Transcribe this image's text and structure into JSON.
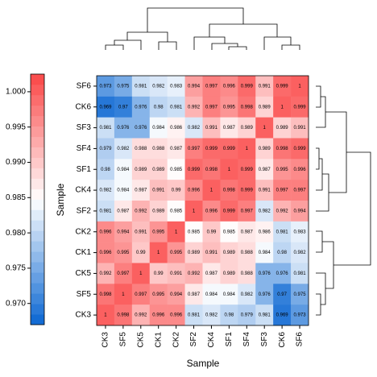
{
  "chart_data": {
    "type": "heatmap",
    "x_label": "Sample",
    "y_label": "Sample",
    "columns": [
      "CK3",
      "SF5",
      "CK5",
      "CK1",
      "CK2",
      "SF2",
      "CK4",
      "SF1",
      "SF4",
      "SF3",
      "CK6",
      "SF6"
    ],
    "rows": [
      "SF6",
      "CK6",
      "SF3",
      "SF4",
      "SF1",
      "CK4",
      "SF2",
      "CK2",
      "CK1",
      "CK5",
      "SF5",
      "CK3"
    ],
    "values": [
      [
        0.973,
        0.975,
        0.981,
        0.982,
        0.983,
        0.994,
        0.997,
        0.996,
        0.999,
        0.991,
        0.999,
        1
      ],
      [
        0.969,
        0.97,
        0.976,
        0.98,
        0.981,
        0.992,
        0.997,
        0.995,
        0.998,
        0.989,
        1,
        0.999
      ],
      [
        0.981,
        0.976,
        0.976,
        0.984,
        0.986,
        0.982,
        0.991,
        0.987,
        0.989,
        1,
        0.989,
        0.991
      ],
      [
        0.979,
        0.982,
        0.988,
        0.988,
        0.987,
        0.997,
        0.999,
        0.999,
        1,
        0.989,
        0.998,
        0.999
      ],
      [
        0.98,
        0.984,
        0.989,
        0.989,
        0.985,
        0.999,
        0.998,
        1,
        0.999,
        0.987,
        0.995,
        0.996
      ],
      [
        0.982,
        0.984,
        0.987,
        0.991,
        0.99,
        0.996,
        1,
        0.998,
        0.999,
        0.991,
        0.997,
        0.997
      ],
      [
        0.981,
        0.987,
        0.992,
        0.989,
        0.985,
        1,
        0.996,
        0.999,
        0.997,
        0.982,
        0.992,
        0.994
      ],
      [
        0.996,
        0.994,
        0.991,
        0.995,
        1,
        0.985,
        0.99,
        0.985,
        0.987,
        0.986,
        0.981,
        0.983
      ],
      [
        0.996,
        0.995,
        0.99,
        1,
        0.995,
        0.989,
        0.991,
        0.989,
        0.988,
        0.984,
        0.98,
        0.982
      ],
      [
        0.992,
        0.997,
        1,
        0.99,
        0.991,
        0.992,
        0.987,
        0.989,
        0.988,
        0.976,
        0.976,
        0.981
      ],
      [
        0.998,
        1,
        0.997,
        0.995,
        0.994,
        0.987,
        0.984,
        0.984,
        0.982,
        0.976,
        0.97,
        0.975
      ],
      [
        1,
        0.998,
        0.992,
        0.996,
        0.996,
        0.981,
        0.982,
        0.98,
        0.979,
        0.981,
        0.969,
        0.973
      ]
    ],
    "zlim": [
      0.967,
      1.0025
    ],
    "zticks": [
      {
        "value": 0.97,
        "label": "0.970"
      },
      0.975,
      {
        "value": 0.98,
        "label": "0.980"
      },
      0.985,
      {
        "value": 0.99,
        "label": "0.990"
      },
      0.995,
      {
        "value": 1,
        "label": "1.000"
      }
    ],
    "colors": [
      "#0a66d2",
      "#ffffff",
      "#fa4646"
    ]
  }
}
